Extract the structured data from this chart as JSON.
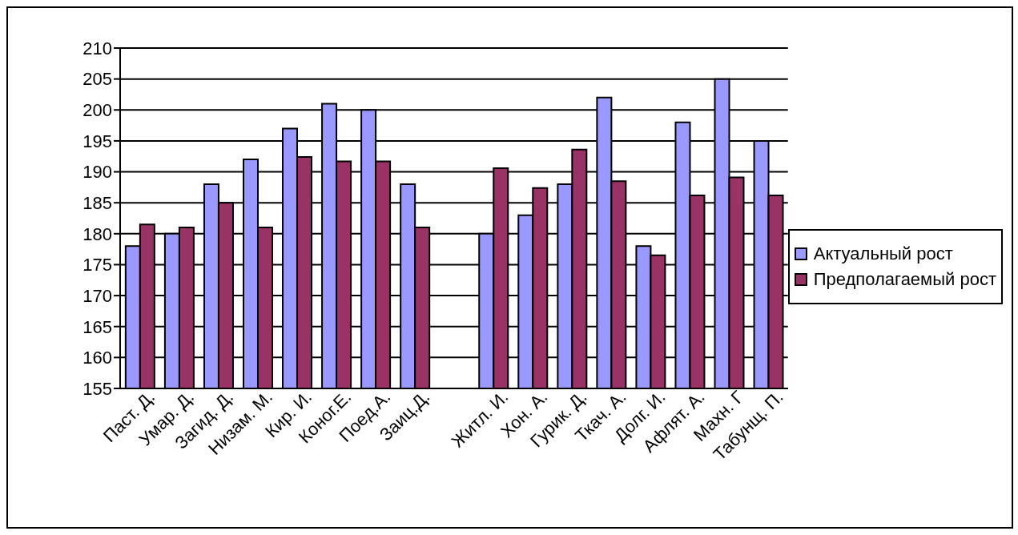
{
  "chart_data": {
    "type": "bar",
    "categories": [
      "Паст. Д.",
      "Умар. Д.",
      "Загид. Д.",
      "Низам. М.",
      "Кир. И.",
      "Коног.Е.",
      "Поед.А.",
      "Заиц.Д.",
      null,
      "Житл. И.",
      "Хон. А.",
      "Гурик. Д.",
      "Ткач. А.",
      "Долг. И.",
      "Афлят. А.",
      "Махн. Г",
      "Табунщ. П."
    ],
    "series": [
      {
        "name": "Актуальный рост",
        "color": "#9999ff",
        "values": [
          178,
          180,
          188,
          192,
          197,
          201,
          200,
          188,
          null,
          180,
          183,
          188,
          202,
          178,
          198,
          205,
          195
        ]
      },
      {
        "name": "Предполагаемый рост",
        "color": "#993366",
        "values": [
          181.5,
          181,
          185,
          181,
          192.4,
          191.7,
          191.7,
          181,
          null,
          190.6,
          187.4,
          193.6,
          188.5,
          176.5,
          186.2,
          189.1,
          186.2
        ]
      }
    ],
    "ylim": [
      155,
      210
    ],
    "yticks": [
      155,
      160,
      165,
      170,
      175,
      180,
      185,
      190,
      195,
      200,
      205,
      210
    ],
    "grid": "y",
    "legend": "right"
  }
}
